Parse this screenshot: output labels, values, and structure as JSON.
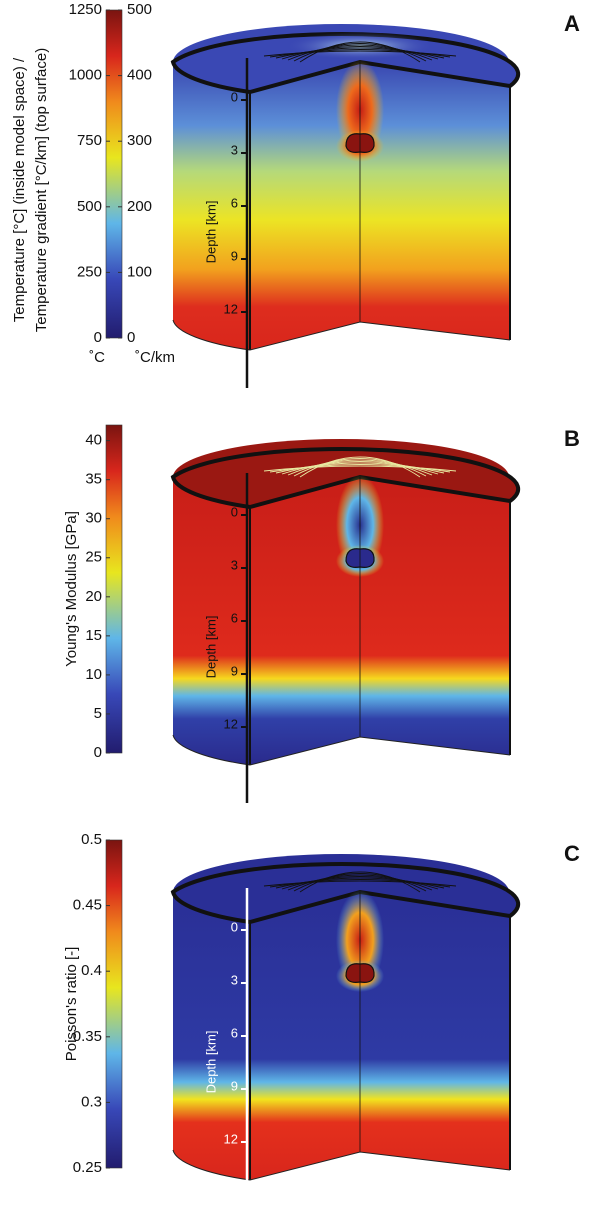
{
  "panels": [
    {
      "label": "A",
      "colorbar": {
        "title": [
          "Temperature [°C] (inside model space) /",
          "Temperature gradient [°C/km] (top surface)"
        ],
        "range": [
          0,
          1250
        ],
        "ticks": [
          0,
          250,
          500,
          750,
          1000,
          1250
        ],
        "range_right": [
          0,
          500
        ],
        "ticks_right": [
          0,
          100,
          200,
          300,
          400,
          500
        ],
        "units": [
          "˚C",
          "˚C/km"
        ]
      },
      "depth_axis": {
        "label": "Depth [km]",
        "ticks": [
          0,
          3,
          6,
          9,
          12
        ]
      }
    },
    {
      "label": "B",
      "colorbar": {
        "title": [
          "Young's Modulus [GPa]"
        ],
        "range": [
          0,
          42
        ],
        "ticks": [
          0,
          5,
          10,
          15,
          20,
          25,
          30,
          35,
          40
        ]
      },
      "depth_axis": {
        "label": "Depth [km]",
        "ticks": [
          0,
          3,
          6,
          9,
          12
        ]
      }
    },
    {
      "label": "C",
      "colorbar": {
        "title": [
          "Poisson's ratio [-]"
        ],
        "range": [
          0.25,
          0.5
        ],
        "ticks": [
          0.25,
          0.3,
          0.35,
          0.4,
          0.45,
          0.5
        ]
      },
      "depth_axis": {
        "label": "Depth [km]",
        "ticks": [
          0,
          3,
          6,
          9,
          12
        ]
      }
    }
  ]
}
